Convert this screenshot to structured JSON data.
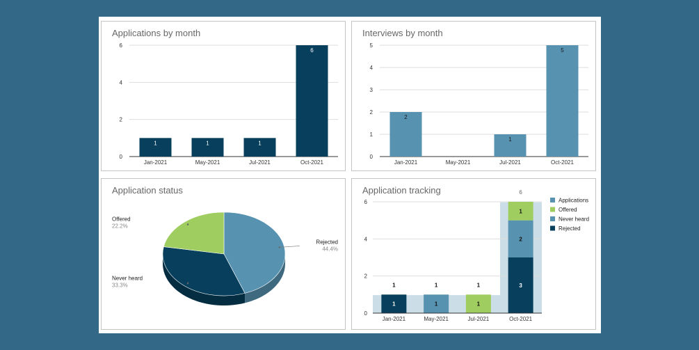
{
  "colors": {
    "dark": "#073f5c",
    "mid": "#5792b1",
    "green": "#9fcd5f",
    "track": "#cbdde6"
  },
  "chart_data": [
    {
      "id": "apps",
      "type": "bar",
      "title": "Applications by month",
      "categories": [
        "Jan-2021",
        "May-2021",
        "Jul-2021",
        "Oct-2021"
      ],
      "values": [
        1,
        1,
        1,
        6
      ],
      "yticks": [
        0,
        2,
        4,
        6
      ],
      "ylim": [
        0,
        6
      ],
      "color": "#073f5c",
      "label_color": "#ffffff"
    },
    {
      "id": "interviews",
      "type": "bar",
      "title": "Interviews by month",
      "categories": [
        "Jan-2021",
        "May-2021",
        "Jul-2021",
        "Oct-2021"
      ],
      "values": [
        2,
        0,
        1,
        5
      ],
      "yticks": [
        0,
        1,
        2,
        3,
        4,
        5
      ],
      "ylim": [
        0,
        5
      ],
      "color": "#5792b1",
      "label_color": "#1a1a1a"
    },
    {
      "id": "status",
      "type": "pie",
      "title": "Application status",
      "slices": [
        {
          "label": "Rejected",
          "percent": "44.4%",
          "value": 44.4,
          "color": "#5792b1"
        },
        {
          "label": "Never heard",
          "percent": "33.3%",
          "value": 33.3,
          "color": "#073f5c"
        },
        {
          "label": "Offered",
          "percent": "22.2%",
          "value": 22.2,
          "color": "#9fcd5f"
        }
      ]
    },
    {
      "id": "tracking",
      "type": "bar",
      "title": "Application tracking",
      "categories": [
        "Jan-2021",
        "May-2021",
        "Jul-2021",
        "Oct-2021"
      ],
      "yticks": [
        0,
        2,
        4,
        6
      ],
      "ylim": [
        0,
        6
      ],
      "applications": [
        1,
        1,
        1,
        6
      ],
      "segments": [
        [
          {
            "series": "Rejected",
            "value": 1
          }
        ],
        [
          {
            "series": "Never heard",
            "value": 1
          }
        ],
        [
          {
            "series": "Offered",
            "value": 1
          }
        ],
        [
          {
            "series": "Rejected",
            "value": 3
          },
          {
            "series": "Never heard",
            "value": 2
          },
          {
            "series": "Offered",
            "value": 1
          }
        ]
      ],
      "legend": [
        {
          "label": "Applications",
          "color": "#5792b1"
        },
        {
          "label": "Offered",
          "color": "#9fcd5f"
        },
        {
          "label": "Never heard",
          "color": "#5792b1"
        },
        {
          "label": "Rejected",
          "color": "#073f5c"
        }
      ]
    }
  ]
}
